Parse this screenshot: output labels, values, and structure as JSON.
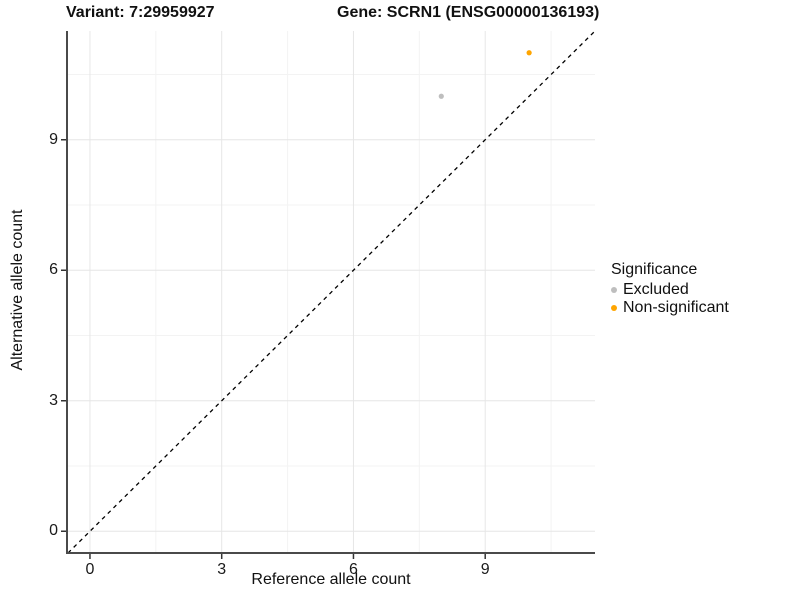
{
  "title": {
    "variant": "Variant: 7:29959927",
    "gene": "Gene: SCRN1 (ENSG00000136193)"
  },
  "axes": {
    "x": {
      "label": "Reference allele count"
    },
    "y": {
      "label": "Alternative allele count"
    }
  },
  "legend": {
    "title": "Significance",
    "items": [
      {
        "label": "Excluded",
        "color": "#BEBEBE"
      },
      {
        "label": "Non-significant",
        "color": "#FFA500"
      }
    ]
  },
  "colors": {
    "background": "#ffffff",
    "axis_line": "#4a4a4a",
    "tick_mark": "#333333",
    "grid_major": "#e6e6e6",
    "grid_minor": "#f3f3f3",
    "reference_line": "#000000",
    "text": "#111111"
  },
  "chart_data": {
    "type": "scatter",
    "title": "Variant: 7:29959927   Gene: SCRN1 (ENSG00000136193)",
    "xlabel": "Reference allele count",
    "ylabel": "Alternative allele count",
    "xlim": [
      -0.5,
      11.5
    ],
    "ylim": [
      -0.5,
      11.5
    ],
    "x_ticks": [
      0,
      3,
      6,
      9
    ],
    "y_ticks": [
      0,
      3,
      6,
      9
    ],
    "x_minor_ticks": [
      1.5,
      4.5,
      7.5,
      10.5
    ],
    "y_minor_ticks": [
      1.5,
      4.5,
      7.5,
      10.5
    ],
    "grid": true,
    "legend_title": "Significance",
    "legend_position": "right",
    "series": [
      {
        "name": "Excluded",
        "color": "#BEBEBE",
        "points": [
          {
            "x": 8,
            "y": 10
          }
        ]
      },
      {
        "name": "Non-significant",
        "color": "#FFA500",
        "points": [
          {
            "x": 10,
            "y": 11
          }
        ]
      }
    ],
    "reference_line": {
      "slope": 1,
      "intercept": 0,
      "style": "dashed",
      "color": "#000000"
    }
  }
}
